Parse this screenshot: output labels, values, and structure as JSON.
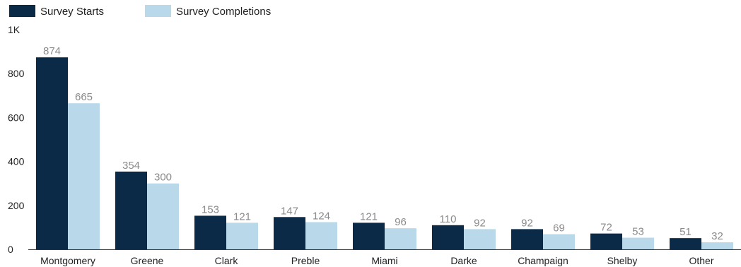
{
  "chart_data": {
    "type": "bar",
    "title": "",
    "xlabel": "",
    "ylabel": "",
    "categories": [
      "Montgomery",
      "Greene",
      "Clark",
      "Preble",
      "Miami",
      "Darke",
      "Champaign",
      "Shelby",
      "Other"
    ],
    "series": [
      {
        "name": "Survey Starts",
        "color": "#0b2a48",
        "values": [
          874,
          354,
          153,
          147,
          121,
          110,
          92,
          72,
          51
        ],
        "labels": [
          "874",
          "354",
          "153",
          "147",
          "121",
          "110",
          "92",
          "72",
          "51"
        ]
      },
      {
        "name": "Survey Completions",
        "color": "#b9d9ea",
        "values": [
          665,
          300,
          121,
          124,
          96,
          92,
          69,
          53,
          32
        ],
        "labels": [
          "665",
          "300",
          "121",
          "124",
          "96",
          "92",
          "69",
          "53",
          "32"
        ]
      }
    ],
    "ylim": [
      0,
      1000
    ],
    "yticks": [
      {
        "value": 0,
        "label": "0"
      },
      {
        "value": 200,
        "label": "200"
      },
      {
        "value": 400,
        "label": "400"
      },
      {
        "value": 600,
        "label": "600"
      },
      {
        "value": 800,
        "label": "800"
      },
      {
        "value": 1000,
        "label": "1K"
      }
    ],
    "grid": false,
    "legend": "top-left",
    "axis_color": "#333333",
    "data_label_color": "#8a8a8a"
  }
}
